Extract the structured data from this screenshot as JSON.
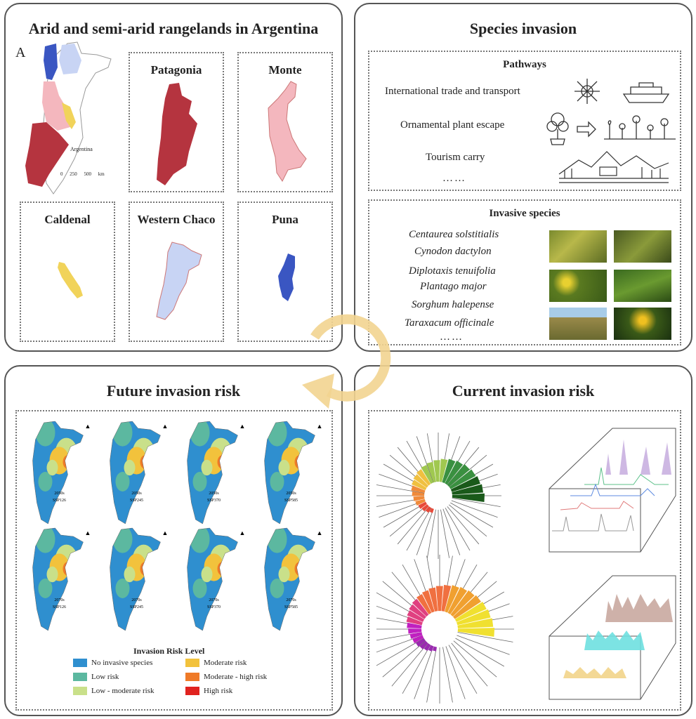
{
  "panel_a": {
    "title": "Arid and semi-arid rangelands in Argentina",
    "letter": "A",
    "map_label": "Argentina",
    "scale_label": "0 250 500 km",
    "regions": [
      {
        "name": "Patagonia",
        "color": "#b5343f"
      },
      {
        "name": "Monte",
        "color": "#f4b7be"
      },
      {
        "name": "Caldenal",
        "color": "#f1d35a"
      },
      {
        "name": "Western Chaco",
        "color": "#c8d4f4"
      },
      {
        "name": "Puna",
        "color": "#3a56c2"
      }
    ]
  },
  "panel_b": {
    "title": "Species invasion",
    "pathways_title": "Pathways",
    "pathways": [
      "International trade and transport",
      "Ornamental plant escape",
      "Tourism carry",
      "……"
    ],
    "species_title": "Invasive species",
    "species": [
      "Centaurea solstitialis",
      "Cynodon dactylon",
      "Diplotaxis tenuifolia",
      "Plantago major",
      "Sorghum halepense",
      "Taraxacum officinale",
      "……"
    ]
  },
  "panel_c": {
    "title": "Current invasion risk"
  },
  "panel_d": {
    "title": "Future invasion risk",
    "map_labels": [
      [
        "2050s",
        "SSP126"
      ],
      [
        "2050s",
        "SSP245"
      ],
      [
        "2050s",
        "SSP370"
      ],
      [
        "2050s",
        "SSP585"
      ],
      [
        "2070s",
        "SSP126"
      ],
      [
        "2070s",
        "SSP245"
      ],
      [
        "2070s",
        "SSP370"
      ],
      [
        "2070s",
        "SSP585"
      ]
    ],
    "legend_title": "Invasion Risk Level",
    "legend": [
      {
        "label": "No invasive species",
        "color": "#2f8fcf"
      },
      {
        "label": "Low risk",
        "color": "#5cb8a0"
      },
      {
        "label": "Low - moderate risk",
        "color": "#c9e08a"
      },
      {
        "label": "Moderate risk",
        "color": "#f2c23c"
      },
      {
        "label": "Moderate - high risk",
        "color": "#ef7a28"
      },
      {
        "label": "High risk",
        "color": "#e0231f"
      }
    ]
  }
}
